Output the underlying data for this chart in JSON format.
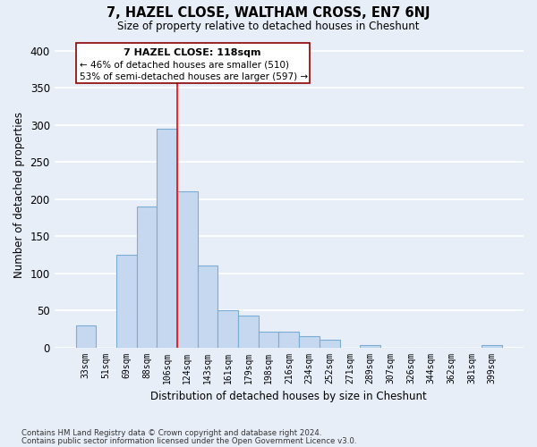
{
  "title": "7, HAZEL CLOSE, WALTHAM CROSS, EN7 6NJ",
  "subtitle": "Size of property relative to detached houses in Cheshunt",
  "xlabel": "Distribution of detached houses by size in Cheshunt",
  "ylabel": "Number of detached properties",
  "bar_labels": [
    "33sqm",
    "51sqm",
    "69sqm",
    "88sqm",
    "106sqm",
    "124sqm",
    "143sqm",
    "161sqm",
    "179sqm",
    "198sqm",
    "216sqm",
    "234sqm",
    "252sqm",
    "271sqm",
    "289sqm",
    "307sqm",
    "326sqm",
    "344sqm",
    "362sqm",
    "381sqm",
    "399sqm"
  ],
  "bar_values": [
    30,
    0,
    125,
    190,
    295,
    210,
    110,
    50,
    43,
    21,
    21,
    15,
    10,
    0,
    3,
    0,
    0,
    0,
    0,
    0,
    3
  ],
  "bar_color": "#c5d8f0",
  "bar_edge_color": "#7aadd4",
  "background_color": "#e8eef8",
  "grid_color": "#ffffff",
  "ylim": [
    0,
    410
  ],
  "yticks": [
    0,
    50,
    100,
    150,
    200,
    250,
    300,
    350,
    400
  ],
  "red_line_index": 4.5,
  "annotation_title": "7 HAZEL CLOSE: 118sqm",
  "annotation_line1": "← 46% of detached houses are smaller (510)",
  "annotation_line2": "53% of semi-detached houses are larger (597) →",
  "footer_line1": "Contains HM Land Registry data © Crown copyright and database right 2024.",
  "footer_line2": "Contains public sector information licensed under the Open Government Licence v3.0."
}
